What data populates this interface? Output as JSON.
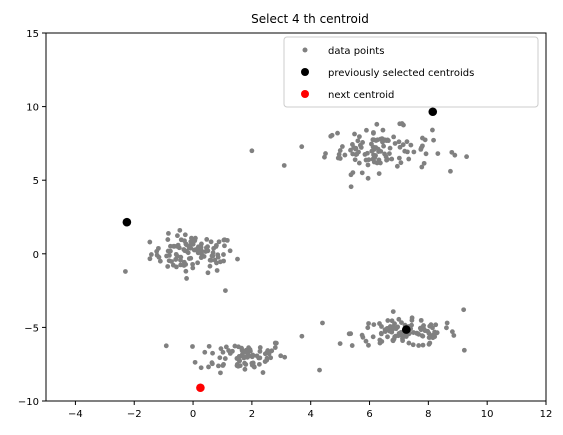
{
  "chart_data": {
    "type": "scatter",
    "title": "Select  4 th centroid",
    "xlabel": "",
    "ylabel": "",
    "xlim": [
      -5,
      12
    ],
    "ylim": [
      -10,
      15
    ],
    "xticks": [
      -4,
      -2,
      0,
      2,
      4,
      6,
      8,
      10,
      12
    ],
    "yticks": [
      -10,
      -5,
      0,
      5,
      10,
      15
    ],
    "grid": false,
    "legend_position": "top-right",
    "series": [
      {
        "name": "data points",
        "color": "#808080",
        "marker": "small-circle",
        "clusters": [
          {
            "center": [
              0.0,
              0.0
            ],
            "spread": [
              0.95,
              0.85
            ],
            "count": 105
          },
          {
            "center": [
              1.7,
              -6.9
            ],
            "spread": [
              1.0,
              0.75
            ],
            "count": 80
          },
          {
            "center": [
              6.3,
              7.1
            ],
            "spread": [
              1.2,
              1.0
            ],
            "count": 110
          },
          {
            "center": [
              7.2,
              -5.4
            ],
            "spread": [
              1.2,
              0.6
            ],
            "count": 110
          }
        ],
        "extra_points": [
          [
            2.0,
            7.0
          ],
          [
            4.3,
            -7.9
          ],
          [
            4.4,
            -4.7
          ],
          [
            5.0,
            -6.1
          ],
          [
            -2.3,
            -1.2
          ],
          [
            3.7,
            -5.6
          ],
          [
            8.9,
            6.7
          ],
          [
            9.2,
            -3.8
          ],
          [
            1.1,
            -2.5
          ],
          [
            3.1,
            6.0
          ],
          [
            9.3,
            6.6
          ]
        ]
      },
      {
        "name": "previously selected centroids",
        "color": "#000000",
        "marker": "circle",
        "points": [
          [
            -2.25,
            2.15
          ],
          [
            8.15,
            9.65
          ],
          [
            7.25,
            -5.15
          ]
        ]
      },
      {
        "name": "next centroid",
        "color": "#ff0000",
        "marker": "circle",
        "points": [
          [
            0.25,
            -9.1
          ]
        ]
      }
    ]
  }
}
